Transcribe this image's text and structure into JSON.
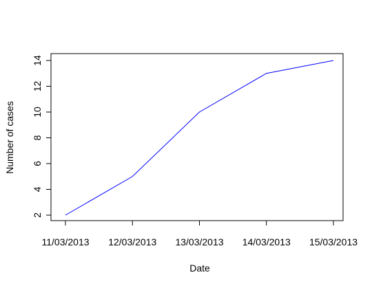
{
  "chart_data": {
    "type": "line",
    "x": [
      "11/03/2013",
      "12/03/2013",
      "13/03/2013",
      "14/03/2013",
      "15/03/2013"
    ],
    "series": [
      {
        "values": [
          2,
          5,
          10,
          13,
          14
        ],
        "color": "#0000ff"
      }
    ],
    "xlabel": "Date",
    "ylabel": "Number of cases",
    "ylim": [
      2,
      14
    ],
    "yticks": [
      2,
      4,
      6,
      8,
      10,
      12,
      14
    ],
    "grid": false,
    "legend": "none"
  }
}
